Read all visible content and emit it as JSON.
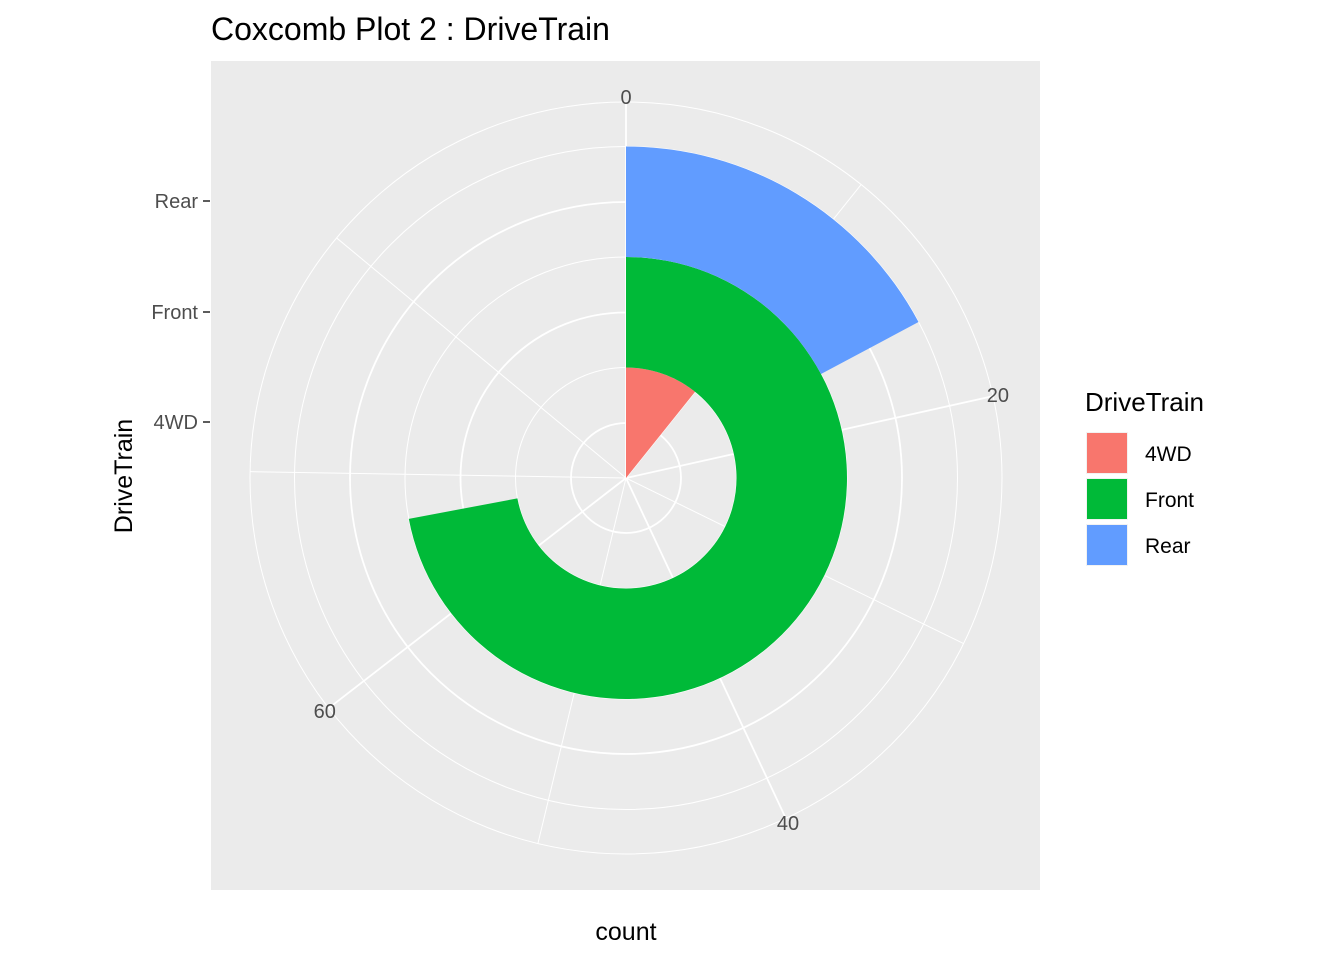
{
  "chart_data": {
    "type": "bar",
    "coord": "polar",
    "title": "Coxcomb Plot 2 : DriveTrain",
    "xlabel": "count",
    "ylabel": "DriveTrain",
    "categories": [
      "4WD",
      "Front",
      "Rear"
    ],
    "values": [
      10,
      67,
      16
    ],
    "colors": [
      "#F8766D",
      "#00BA38",
      "#619CFF"
    ],
    "theta_ticks": [
      "0",
      "20",
      "40",
      "60"
    ],
    "theta_tick_values": [
      0,
      20,
      40,
      60
    ],
    "theta_max": 93,
    "legend": {
      "title": "DriveTrain",
      "position": "right",
      "entries": [
        "4WD",
        "Front",
        "Rear"
      ]
    },
    "panel_background": "#EBEBEB",
    "grid": true
  }
}
